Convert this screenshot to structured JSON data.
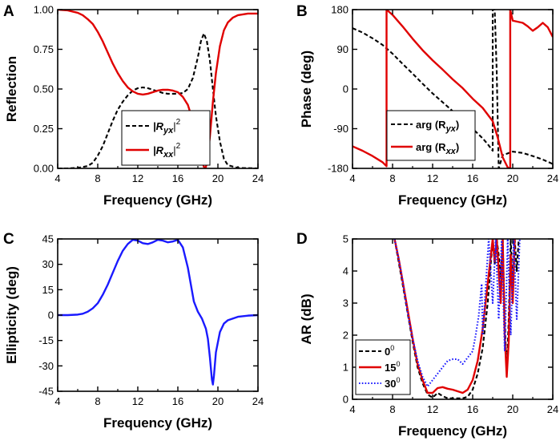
{
  "figure_title": "",
  "chart_data": [
    {
      "id": "A",
      "panel_label": "A",
      "type": "line",
      "xlabel": "Frequency (GHz)",
      "ylabel": "Reflection",
      "xlim": [
        4,
        24
      ],
      "ylim": [
        0,
        1
      ],
      "xticks": [
        4,
        8,
        12,
        16,
        20,
        24
      ],
      "yticks": [
        0,
        0.25,
        0.5,
        0.75,
        1
      ],
      "ytick_labels": [
        "0.00",
        "0.25",
        "0.50",
        "0.75",
        "1.00"
      ],
      "legend": {
        "position": "bottom-center",
        "entries": [
          "|R_yx|^2",
          "|R_xx|^2"
        ]
      },
      "series": [
        {
          "name": "|R_yx|^2",
          "label_main": "|R",
          "label_sub": "yx",
          "label_tail": "|",
          "label_sup": "2",
          "color": "#000000",
          "style": "dashed",
          "x": [
            4,
            5,
            6,
            7,
            7.5,
            8,
            8.5,
            9,
            9.5,
            10,
            10.5,
            11,
            11.5,
            12,
            12.5,
            13,
            13.5,
            14,
            14.5,
            15,
            15.5,
            16,
            16.5,
            17,
            17.5,
            18,
            18.3,
            18.6,
            18.9,
            19.2,
            19.5,
            19.8,
            20.2,
            20.6,
            21,
            22,
            24
          ],
          "y": [
            0,
            0,
            0.003,
            0.015,
            0.035,
            0.08,
            0.14,
            0.22,
            0.3,
            0.37,
            0.42,
            0.46,
            0.49,
            0.505,
            0.51,
            0.505,
            0.495,
            0.485,
            0.475,
            0.47,
            0.47,
            0.47,
            0.475,
            0.5,
            0.57,
            0.7,
            0.8,
            0.85,
            0.8,
            0.68,
            0.5,
            0.33,
            0.17,
            0.06,
            0.02,
            0.003,
            0
          ]
        },
        {
          "name": "|R_xx|^2",
          "label_main": "|R",
          "label_sub": "xx",
          "label_tail": "|",
          "label_sup": "2",
          "color": "#e00000",
          "style": "solid",
          "x": [
            4,
            5,
            6,
            6.5,
            7,
            7.5,
            8,
            8.5,
            9,
            9.5,
            10,
            10.5,
            11,
            11.5,
            12,
            12.5,
            13,
            13.5,
            14,
            14.5,
            15,
            15.5,
            16,
            16.5,
            17,
            17.5,
            18,
            18.3,
            18.6,
            18.75,
            18.9,
            19.2,
            19.5,
            19.8,
            20.2,
            20.6,
            21,
            21.5,
            22,
            23,
            24
          ],
          "y": [
            1,
            0.995,
            0.98,
            0.965,
            0.94,
            0.91,
            0.86,
            0.8,
            0.73,
            0.66,
            0.6,
            0.55,
            0.51,
            0.485,
            0.47,
            0.465,
            0.47,
            0.48,
            0.49,
            0.495,
            0.495,
            0.49,
            0.48,
            0.45,
            0.4,
            0.3,
            0.17,
            0.07,
            0.01,
            0,
            0.03,
            0.2,
            0.42,
            0.6,
            0.77,
            0.87,
            0.92,
            0.95,
            0.965,
            0.975,
            0.975
          ]
        }
      ]
    },
    {
      "id": "B",
      "panel_label": "B",
      "type": "line",
      "xlabel": "Frequency (GHz)",
      "ylabel": "Phase (deg)",
      "xlim": [
        4,
        24
      ],
      "ylim": [
        -180,
        180
      ],
      "xticks": [
        4,
        8,
        12,
        16,
        20,
        24
      ],
      "yticks": [
        -180,
        -90,
        0,
        90,
        180
      ],
      "ytick_labels": [
        "-180",
        "-90",
        "0",
        "90",
        "180"
      ],
      "legend": {
        "position": "bottom-center",
        "entries": [
          "arg (R_yx)",
          "arg (R_xx)"
        ]
      },
      "series": [
        {
          "name": "arg (R_yx)",
          "label_main": "arg (R",
          "label_sub": "yx",
          "label_tail": ")",
          "color": "#000000",
          "style": "dashed",
          "x": [
            4,
            5,
            6,
            7,
            8,
            9,
            10,
            11,
            12,
            13,
            14,
            15,
            16,
            17,
            17.5,
            18,
            18,
            18.2,
            18.4,
            18.6,
            19,
            20,
            21,
            22,
            23,
            24
          ],
          "y": [
            138,
            128,
            115,
            100,
            80,
            57,
            35,
            12,
            -10,
            -30,
            -50,
            -70,
            -90,
            -112,
            -125,
            -140,
            180,
            180,
            40,
            -180,
            -150,
            -142,
            -145,
            -152,
            -160,
            -170
          ]
        },
        {
          "name": "arg (R_xx)",
          "label_main": "arg (R",
          "label_sub": "xx",
          "label_tail": ")",
          "color": "#e00000",
          "style": "solid",
          "x": [
            4,
            5,
            6,
            7,
            7.4,
            7.4,
            8,
            9,
            10,
            11,
            12,
            13,
            14,
            15,
            16,
            17,
            18,
            18.5,
            19,
            19.5,
            19.75,
            19.75,
            20,
            21,
            21.5,
            22,
            22.5,
            23,
            23.5,
            24
          ],
          "y": [
            -130,
            -140,
            -152,
            -166,
            -175,
            180,
            168,
            142,
            114,
            88,
            65,
            44,
            22,
            2,
            -22,
            -43,
            -73,
            -110,
            -155,
            -178,
            -180,
            180,
            155,
            150,
            142,
            132,
            140,
            150,
            140,
            118
          ]
        }
      ]
    },
    {
      "id": "C",
      "panel_label": "C",
      "type": "line",
      "xlabel": "Frequency (GHz)",
      "ylabel": "Ellipticity (deg)",
      "xlim": [
        4,
        24
      ],
      "ylim": [
        -45,
        45
      ],
      "xticks": [
        4,
        8,
        12,
        16,
        20,
        24
      ],
      "yticks": [
        -45,
        -30,
        -15,
        0,
        15,
        30,
        45
      ],
      "ytick_labels": [
        "-45",
        "-30",
        "-15",
        "0",
        "15",
        "30",
        "45"
      ],
      "legend": null,
      "series": [
        {
          "name": "Ellipticity",
          "color": "#1a1aff",
          "style": "solid",
          "x": [
            4,
            5,
            6,
            6.5,
            7,
            7.5,
            8,
            8.5,
            9,
            9.5,
            10,
            10.5,
            11,
            11.5,
            12,
            12.5,
            13,
            13.5,
            14,
            14.5,
            15,
            15.5,
            16,
            16.5,
            17,
            17.3,
            17.6,
            18,
            18.4,
            18.8,
            19,
            19.2,
            19.4,
            19.5,
            19.6,
            19.8,
            20.2,
            20.6,
            21,
            22,
            23,
            24
          ],
          "y": [
            0,
            0,
            0.3,
            0.8,
            2,
            4,
            7,
            12,
            18,
            25,
            32,
            38,
            42,
            44.5,
            44,
            42.5,
            42,
            43,
            44.5,
            44,
            43,
            43.5,
            44.5,
            40,
            28,
            18,
            8,
            2,
            -2,
            -8,
            -14,
            -25,
            -38,
            -41,
            -36,
            -22,
            -10,
            -5,
            -3,
            -1,
            -0.3,
            0
          ]
        }
      ]
    },
    {
      "id": "D",
      "panel_label": "D",
      "type": "line",
      "xlabel": "Frequency (GHz)",
      "ylabel": "AR (dB)",
      "xlim": [
        4,
        24
      ],
      "ylim": [
        0,
        5
      ],
      "xticks": [
        4,
        8,
        12,
        16,
        20,
        24
      ],
      "yticks": [
        0,
        1,
        2,
        3,
        4,
        5
      ],
      "ytick_labels": [
        "0",
        "1",
        "2",
        "3",
        "4",
        "5"
      ],
      "legend": {
        "position": "bottom-left",
        "entries": [
          "0°",
          "15°",
          "30°"
        ]
      },
      "series": [
        {
          "name": "0°",
          "label_main": "0",
          "label_sup": "0",
          "color": "#000000",
          "style": "dashed",
          "x": [
            8.2,
            8.6,
            9,
            9.5,
            10,
            10.5,
            11,
            11.5,
            12,
            12.5,
            13,
            13.5,
            14,
            14.5,
            15,
            15.5,
            16,
            16.5,
            17,
            17.5,
            18,
            18.2,
            18.4,
            18.6,
            18.8,
            19.0,
            19.2,
            19.4,
            19.6,
            19.8,
            20.0,
            20.2,
            20.4,
            20.6
          ],
          "y": [
            5,
            4.3,
            3.6,
            2.7,
            1.8,
            1.0,
            0.5,
            0.15,
            0.05,
            0.2,
            0.1,
            0.03,
            0.03,
            0.03,
            0.03,
            0.08,
            0.3,
            0.8,
            1.6,
            3.0,
            5,
            4.2,
            5,
            4.5,
            3.8,
            5,
            2.5,
            0.8,
            2.5,
            5,
            3.5,
            5,
            4.0,
            5
          ]
        },
        {
          "name": "15°",
          "label_main": "15",
          "label_sup": "0",
          "color": "#e00000",
          "style": "solid",
          "x": [
            8.2,
            8.6,
            9,
            9.5,
            10,
            10.5,
            11,
            11.5,
            12,
            12.5,
            13,
            13.5,
            14,
            14.5,
            15,
            15.5,
            16,
            16.5,
            17,
            17.5,
            18,
            18.2,
            18.4,
            18.6,
            18.8,
            19.0,
            19.2,
            19.4,
            19.6,
            19.8,
            20.0,
            20.2
          ],
          "y": [
            5,
            4.4,
            3.7,
            2.8,
            1.9,
            1.1,
            0.6,
            0.2,
            0.2,
            0.35,
            0.38,
            0.33,
            0.3,
            0.25,
            0.2,
            0.3,
            0.6,
            1.2,
            2.2,
            3.6,
            5,
            4.3,
            5,
            4.0,
            3.0,
            5,
            2.0,
            0.7,
            1.8,
            4.5,
            3.0,
            5
          ]
        },
        {
          "name": "30°",
          "label_main": "30",
          "label_sup": "0",
          "color": "#1a1aff",
          "style": "dotted",
          "x": [
            8.2,
            8.6,
            9,
            9.5,
            10,
            10.5,
            11,
            11.5,
            12,
            12.5,
            13,
            13.5,
            14,
            14.5,
            15,
            15.5,
            16,
            16.3,
            16.6,
            16.9,
            17,
            17.3,
            17.6,
            18,
            18.3,
            18.6,
            18.9,
            19.2,
            19.5,
            19.8,
            20.1,
            20.4,
            20.7
          ],
          "y": [
            5,
            4.4,
            3.7,
            2.7,
            1.9,
            1.2,
            0.7,
            0.4,
            0.6,
            0.8,
            1.0,
            1.2,
            1.25,
            1.25,
            1.1,
            1.3,
            1.5,
            2.0,
            2.6,
            3.6,
            2.0,
            3.5,
            5,
            3.0,
            5,
            2.5,
            5,
            1.5,
            5,
            2.0,
            5,
            2.5,
            5
          ]
        }
      ]
    }
  ]
}
